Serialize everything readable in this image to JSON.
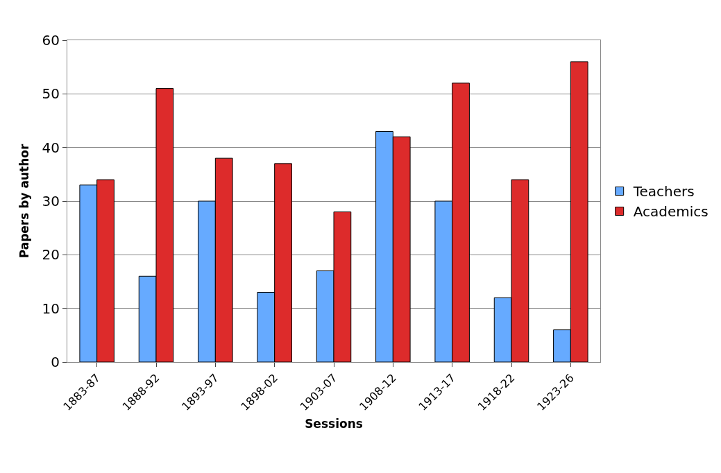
{
  "chart_data": {
    "type": "bar",
    "xlabel": "Sessions",
    "ylabel": "Papers by author",
    "categories": [
      "1883-87",
      "1888-92",
      "1893-97",
      "1898-02",
      "1903-07",
      "1908-12",
      "1913-17",
      "1918-22",
      "1923-26"
    ],
    "series": [
      {
        "name": "Teachers",
        "color": "#66aaff",
        "values": [
          33,
          16,
          30,
          13,
          17,
          43,
          30,
          12,
          6
        ]
      },
      {
        "name": "Academics",
        "color": "#dd2b2b",
        "values": [
          34,
          51,
          38,
          37,
          28,
          42,
          52,
          34,
          56
        ]
      }
    ],
    "ylim": [
      0,
      60
    ],
    "yticks": [
      0,
      10,
      20,
      30,
      40,
      50,
      60
    ],
    "grid": "y",
    "legend": "right"
  }
}
